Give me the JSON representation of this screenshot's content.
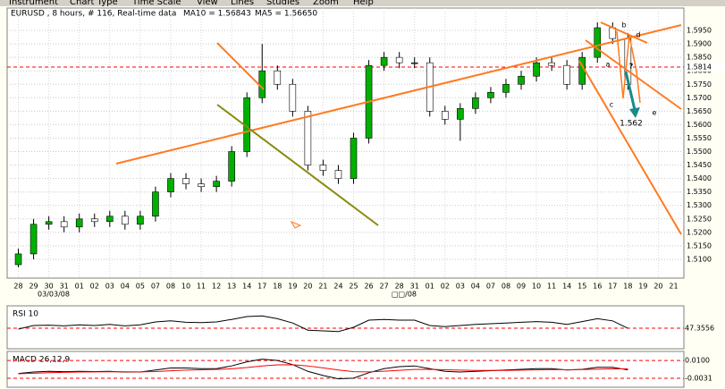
{
  "menu": [
    "Instrument",
    "Chart Type",
    "Time Scale",
    "View",
    "Lines",
    "Studies",
    "Zoom",
    "Help"
  ],
  "chart_data": [
    {
      "type": "candlestick",
      "title": "EURUSD , 8 hours, # 116, Real-time data",
      "indicators": [
        {
          "label": "MA10 = 1.56843",
          "color": "#ff00ff"
        },
        {
          "label": "MA5 = 1.56650",
          "color": "#ff0000"
        }
      ],
      "categories": [
        "28",
        "29",
        "30",
        "31",
        "01",
        "02",
        "03",
        "04",
        "05",
        "07",
        "08",
        "10",
        "11",
        "12",
        "13",
        "14",
        "17",
        "18",
        "19",
        "20",
        "21",
        "24",
        "25",
        "26",
        "27",
        "28",
        "31",
        "01",
        "02",
        "03",
        "04",
        "07",
        "08",
        "09",
        "10",
        "11",
        "14",
        "15",
        "16",
        "17",
        "18",
        "19",
        "20",
        "21"
      ],
      "date_labels": [
        "03/03/08",
        "□□/08"
      ],
      "open": [
        1.508,
        1.512,
        1.523,
        1.524,
        1.522,
        1.525,
        1.524,
        1.526,
        1.523,
        1.526,
        1.535,
        1.54,
        1.538,
        1.537,
        1.539,
        1.55,
        1.57,
        1.58,
        1.575,
        1.565,
        1.545,
        1.543,
        1.54,
        1.555,
        1.582,
        1.585,
        1.583,
        1.583,
        1.565,
        1.562,
        1.566,
        1.57,
        1.572,
        1.575,
        1.578,
        1.583,
        1.582,
        1.575,
        1.585,
        1.596,
        1.592,
        null,
        null,
        null
      ],
      "high": [
        1.514,
        1.525,
        1.526,
        1.526,
        1.527,
        1.527,
        1.528,
        1.528,
        1.528,
        1.537,
        1.542,
        1.542,
        1.54,
        1.541,
        1.552,
        1.572,
        1.59,
        1.582,
        1.577,
        1.567,
        1.547,
        1.545,
        1.557,
        1.584,
        1.587,
        1.587,
        1.585,
        1.585,
        1.567,
        1.568,
        1.572,
        1.574,
        1.577,
        1.58,
        1.585,
        1.585,
        1.584,
        1.587,
        1.598,
        1.598,
        1.594,
        null,
        null,
        null
      ],
      "low": [
        1.507,
        1.51,
        1.521,
        1.52,
        1.52,
        1.522,
        1.522,
        1.521,
        1.521,
        1.524,
        1.533,
        1.536,
        1.535,
        1.535,
        1.537,
        1.548,
        1.568,
        1.573,
        1.563,
        1.543,
        1.541,
        1.538,
        1.538,
        1.553,
        1.58,
        1.581,
        1.581,
        1.563,
        1.56,
        1.554,
        1.564,
        1.568,
        1.57,
        1.573,
        1.576,
        1.58,
        1.573,
        1.573,
        1.583,
        1.59,
        1.573,
        null,
        null,
        null
      ],
      "close": [
        1.512,
        1.523,
        1.524,
        1.522,
        1.525,
        1.524,
        1.526,
        1.523,
        1.526,
        1.535,
        1.54,
        1.538,
        1.537,
        1.539,
        1.55,
        1.57,
        1.58,
        1.575,
        1.565,
        1.545,
        1.543,
        1.54,
        1.555,
        1.582,
        1.585,
        1.583,
        1.583,
        1.565,
        1.562,
        1.566,
        1.57,
        1.572,
        1.575,
        1.578,
        1.583,
        1.582,
        1.575,
        1.585,
        1.596,
        1.592,
        1.575,
        null,
        null,
        null
      ],
      "up_color": "#00b000",
      "down_color": "#ffffff",
      "ylim": [
        1.506,
        1.599
      ],
      "yticks": [
        {
          "value": 1.51,
          "label": "1.5100"
        },
        {
          "value": 1.515,
          "label": "1.5150"
        },
        {
          "value": 1.52,
          "label": "1.5200"
        },
        {
          "value": 1.525,
          "label": "1.5250"
        },
        {
          "value": 1.53,
          "label": "1.5300"
        },
        {
          "value": 1.535,
          "label": "1.5350"
        },
        {
          "value": 1.54,
          "label": "1.5400"
        },
        {
          "value": 1.545,
          "label": "1.5450"
        },
        {
          "value": 1.55,
          "label": "1.5500"
        },
        {
          "value": 1.555,
          "label": "1.5550"
        },
        {
          "value": 1.56,
          "label": "1.5600"
        },
        {
          "value": 1.565,
          "label": "1.5650"
        },
        {
          "value": 1.57,
          "label": "1.5700"
        },
        {
          "value": 1.575,
          "label": "1.5750"
        },
        {
          "value": 1.58,
          "label": "1.5800"
        },
        {
          "value": 1.585,
          "label": "1.5850"
        },
        {
          "value": 1.59,
          "label": "1.5900"
        },
        {
          "value": 1.595,
          "label": "1.5950"
        }
      ],
      "reference_line": {
        "value": 1.5814,
        "label": "1.5814",
        "color": "#ff0000"
      },
      "grid": true,
      "annotations": [
        "1.562",
        "a",
        "b",
        "c",
        "d",
        "e",
        "?"
      ]
    },
    {
      "type": "line",
      "title": "RSI 10",
      "values": [
        45,
        55,
        56,
        54,
        57,
        55,
        58,
        54,
        57,
        65,
        68,
        64,
        63,
        65,
        72,
        80,
        82,
        74,
        62,
        42,
        40,
        38,
        50,
        70,
        72,
        70,
        70,
        55,
        52,
        55,
        58,
        60,
        62,
        64,
        66,
        64,
        58,
        66,
        74,
        68,
        47.3556,
        null,
        null,
        null
      ],
      "color": "#000000",
      "ylim": [
        0,
        100
      ],
      "reference_line": {
        "value": 47.3556,
        "label": "47.3556",
        "color": "#ff0000"
      }
    },
    {
      "type": "line",
      "title": "MACD 26,12,9",
      "series": [
        {
          "color": "#000000",
          "values": [
            0.0005,
            0.0015,
            0.002,
            0.0018,
            0.002,
            0.0019,
            0.002,
            0.0015,
            0.0015,
            0.003,
            0.0045,
            0.0045,
            0.004,
            0.004,
            0.006,
            0.009,
            0.011,
            0.01,
            0.007,
            0.002,
            -0.001,
            -0.0035,
            -0.003,
            0.001,
            0.004,
            0.0055,
            0.006,
            0.004,
            0.002,
            0.0015,
            0.002,
            0.0025,
            0.003,
            0.0035,
            0.004,
            0.004,
            0.003,
            0.0035,
            0.005,
            0.005,
            0.0031,
            null,
            null,
            null
          ]
        },
        {
          "color": "#ff0000",
          "values": [
            0.0002,
            0.0006,
            0.001,
            0.0013,
            0.0015,
            0.0016,
            0.0017,
            0.0017,
            0.0016,
            0.0019,
            0.0024,
            0.0029,
            0.0032,
            0.0034,
            0.0039,
            0.0048,
            0.006,
            0.0068,
            0.0069,
            0.006,
            0.0046,
            0.003,
            0.0018,
            0.0016,
            0.0021,
            0.0028,
            0.0034,
            0.0035,
            0.0032,
            0.0029,
            0.0027,
            0.0027,
            0.0027,
            0.0029,
            0.0031,
            0.0033,
            0.0032,
            0.0033,
            0.0036,
            0.0039,
            0.0038,
            null,
            null,
            null
          ]
        }
      ],
      "ylim": [
        -0.007,
        0.014
      ],
      "yticks": [
        {
          "value": 0.01,
          "label": "0.0100"
        },
        {
          "value": -0.0031,
          "label": "-0.0031"
        }
      ],
      "tick_color": "#ff0000"
    }
  ]
}
